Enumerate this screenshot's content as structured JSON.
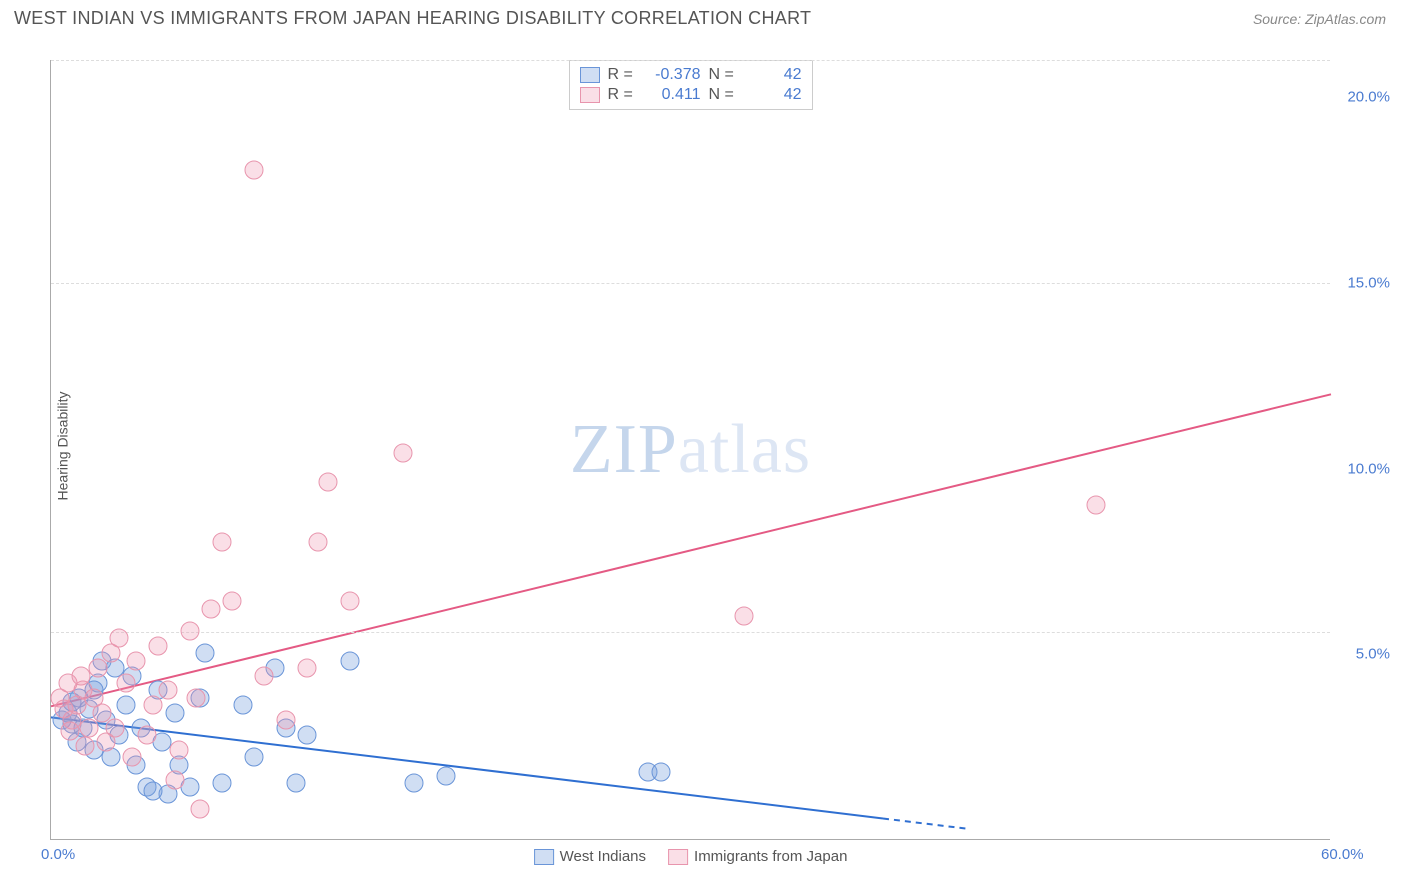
{
  "header": {
    "title": "WEST INDIAN VS IMMIGRANTS FROM JAPAN HEARING DISABILITY CORRELATION CHART",
    "source": "Source: ZipAtlas.com"
  },
  "watermark": {
    "zip": "ZIP",
    "atlas": "atlas"
  },
  "chart": {
    "type": "scatter",
    "ylabel": "Hearing Disability",
    "background_color": "#ffffff",
    "grid_color": "#dddddd",
    "axis_color": "#aaaaaa",
    "tick_color": "#4a7bd0",
    "xlim": [
      0,
      60
    ],
    "ylim": [
      0,
      21
    ],
    "xticks": [
      {
        "pos": 0,
        "label": "0.0%"
      },
      {
        "pos": 60,
        "label": "60.0%"
      }
    ],
    "yticks": [
      {
        "pos": 5,
        "label": "5.0%"
      },
      {
        "pos": 10,
        "label": "10.0%"
      },
      {
        "pos": 15,
        "label": "15.0%"
      },
      {
        "pos": 20,
        "label": "20.0%"
      }
    ],
    "grid_y": [
      5.6,
      15,
      21
    ],
    "series": [
      {
        "name": "West Indians",
        "color_fill": "rgba(120,160,220,0.35)",
        "color_stroke": "#6a95d8",
        "marker_size": 19,
        "trend": {
          "x1": 0,
          "y1": 3.3,
          "x2": 43,
          "y2": 0.3,
          "solid_until": 39,
          "color": "#2f6fd1",
          "width": 2
        },
        "r": "-0.378",
        "n": "42",
        "points": [
          [
            0.5,
            3.2
          ],
          [
            0.8,
            3.4
          ],
          [
            1.0,
            3.1
          ],
          [
            1.2,
            2.6
          ],
          [
            1.3,
            3.8
          ],
          [
            1.5,
            3.0
          ],
          [
            1.8,
            3.5
          ],
          [
            2.0,
            2.4
          ],
          [
            2.2,
            4.2
          ],
          [
            2.4,
            4.8
          ],
          [
            2.6,
            3.2
          ],
          [
            2.8,
            2.2
          ],
          [
            3.0,
            4.6
          ],
          [
            3.2,
            2.8
          ],
          [
            3.5,
            3.6
          ],
          [
            4.0,
            2.0
          ],
          [
            4.2,
            3.0
          ],
          [
            4.5,
            1.4
          ],
          [
            5.0,
            4.0
          ],
          [
            5.2,
            2.6
          ],
          [
            5.5,
            1.2
          ],
          [
            5.8,
            3.4
          ],
          [
            6.0,
            2.0
          ],
          [
            6.5,
            1.4
          ],
          [
            7.0,
            3.8
          ],
          [
            7.2,
            5.0
          ],
          [
            8.0,
            1.5
          ],
          [
            9.0,
            3.6
          ],
          [
            9.5,
            2.2
          ],
          [
            10.5,
            4.6
          ],
          [
            11.0,
            3.0
          ],
          [
            11.5,
            1.5
          ],
          [
            12.0,
            2.8
          ],
          [
            14.0,
            4.8
          ],
          [
            17.0,
            1.5
          ],
          [
            28.0,
            1.8
          ],
          [
            28.6,
            1.8
          ],
          [
            18.5,
            1.7
          ],
          [
            4.8,
            1.3
          ],
          [
            3.8,
            4.4
          ],
          [
            2.0,
            4.0
          ],
          [
            1.0,
            3.7
          ]
        ]
      },
      {
        "name": "Immigrants from Japan",
        "color_fill": "rgba(240,150,175,0.3)",
        "color_stroke": "#e895ad",
        "marker_size": 19,
        "trend": {
          "x1": 0,
          "y1": 3.6,
          "x2": 60,
          "y2": 12.0,
          "solid_until": 60,
          "color": "#e45a84",
          "width": 2
        },
        "r": "0.411",
        "n": "42",
        "points": [
          [
            0.4,
            3.8
          ],
          [
            0.6,
            3.5
          ],
          [
            0.8,
            4.2
          ],
          [
            1.0,
            3.2
          ],
          [
            1.2,
            3.6
          ],
          [
            1.5,
            4.0
          ],
          [
            1.8,
            3.0
          ],
          [
            2.0,
            3.8
          ],
          [
            2.2,
            4.6
          ],
          [
            2.4,
            3.4
          ],
          [
            2.8,
            5.0
          ],
          [
            3.0,
            3.0
          ],
          [
            3.2,
            5.4
          ],
          [
            3.5,
            4.2
          ],
          [
            4.0,
            4.8
          ],
          [
            4.5,
            2.8
          ],
          [
            4.8,
            3.6
          ],
          [
            5.0,
            5.2
          ],
          [
            5.5,
            4.0
          ],
          [
            6.0,
            2.4
          ],
          [
            6.5,
            5.6
          ],
          [
            7.0,
            0.8
          ],
          [
            7.5,
            6.2
          ],
          [
            8.0,
            8.0
          ],
          [
            8.5,
            6.4
          ],
          [
            9.5,
            18.0
          ],
          [
            10.0,
            4.4
          ],
          [
            11.0,
            3.2
          ],
          [
            12.0,
            4.6
          ],
          [
            12.5,
            8.0
          ],
          [
            13.0,
            9.6
          ],
          [
            14.0,
            6.4
          ],
          [
            16.5,
            10.4
          ],
          [
            32.5,
            6.0
          ],
          [
            49.0,
            9.0
          ],
          [
            2.6,
            2.6
          ],
          [
            3.8,
            2.2
          ],
          [
            5.8,
            1.6
          ],
          [
            6.8,
            3.8
          ],
          [
            1.4,
            4.4
          ],
          [
            0.9,
            2.9
          ],
          [
            1.6,
            2.5
          ]
        ]
      }
    ],
    "legend_bottom": [
      {
        "swatch": "blue",
        "label": "West Indians"
      },
      {
        "swatch": "pink",
        "label": "Immigrants from Japan"
      }
    ],
    "legend_top": {
      "r_label": "R =",
      "n_label": "N =",
      "rows": [
        {
          "swatch": "blue",
          "r": "-0.378",
          "n": "42"
        },
        {
          "swatch": "pink",
          "r": "0.411",
          "n": "42"
        }
      ]
    }
  }
}
